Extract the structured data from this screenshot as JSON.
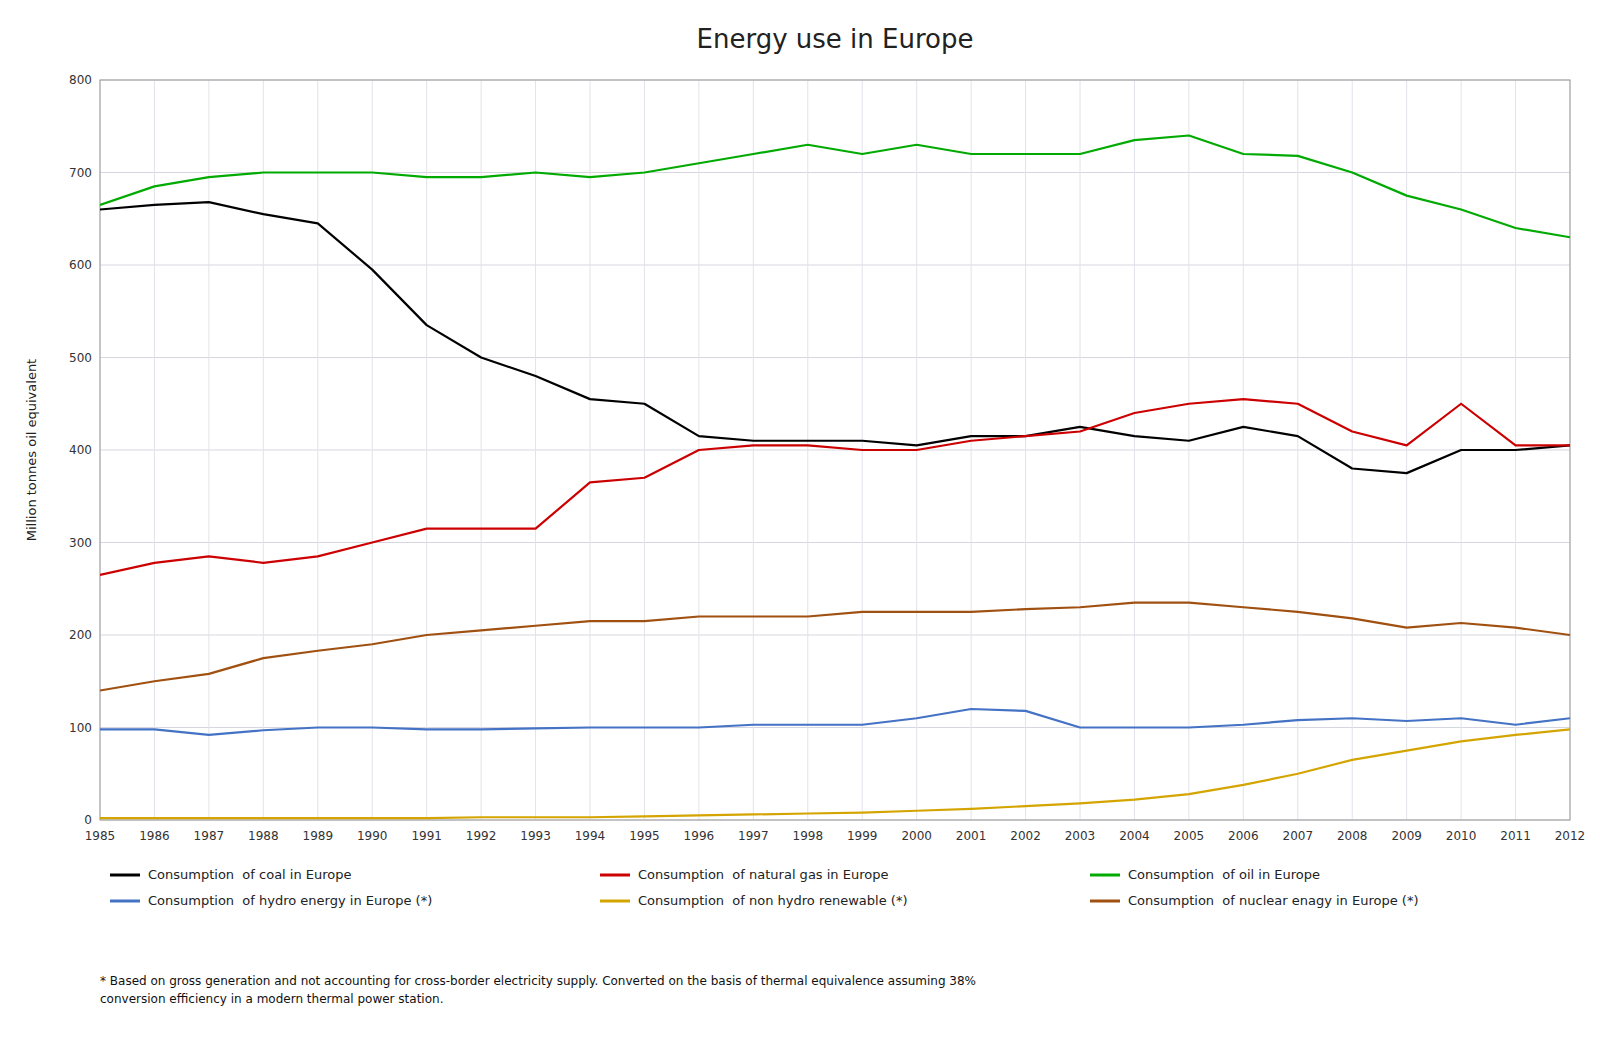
{
  "chart_data": {
    "type": "line",
    "title": "Energy use in Europe",
    "y_label": "Million tonnes oil equivalent",
    "annotations": [
      "* Based on gross generation and not accounting for cross-border electricity supply. Converted on the basis of thermal equivalence assuming 38%\nconversion efficiency in a modern thermal power station."
    ],
    "x": [
      1985,
      1986,
      1987,
      1988,
      1989,
      1990,
      1991,
      1992,
      1993,
      1994,
      1995,
      1996,
      1997,
      1998,
      1999,
      2000,
      2001,
      2002,
      2003,
      2004,
      2005,
      2006,
      2007,
      2008,
      2009,
      2010,
      2011,
      2012
    ],
    "series": [
      {
        "name": "Consumption  of coal in Europe",
        "color": "#000000",
        "values": [
          660,
          665,
          668,
          655,
          645,
          595,
          535,
          500,
          480,
          455,
          450,
          415,
          410,
          410,
          410,
          405,
          415,
          415,
          425,
          415,
          410,
          425,
          415,
          380,
          375,
          400,
          400,
          405
        ]
      },
      {
        "name": "Consumption  of natural gas in Europe",
        "color": "#cc0000",
        "values": [
          265,
          278,
          285,
          278,
          285,
          300,
          315,
          315,
          315,
          365,
          370,
          400,
          405,
          405,
          400,
          400,
          410,
          415,
          420,
          440,
          450,
          455,
          450,
          420,
          405,
          450,
          405,
          405
        ]
      },
      {
        "name": "Consumption  of oil in Europe",
        "color": "#00aa00",
        "values": [
          665,
          685,
          695,
          700,
          700,
          700,
          695,
          695,
          700,
          695,
          700,
          710,
          720,
          730,
          720,
          730,
          720,
          720,
          720,
          735,
          740,
          720,
          718,
          700,
          675,
          660,
          640,
          630
        ]
      },
      {
        "name": "Consumption  of hydro energy in Europe (*)",
        "color": "#4472c4",
        "values": [
          98,
          98,
          92,
          97,
          100,
          100,
          98,
          98,
          99,
          100,
          100,
          100,
          103,
          103,
          103,
          110,
          120,
          118,
          100,
          100,
          100,
          103,
          108,
          110,
          107,
          110,
          103,
          110
        ]
      },
      {
        "name": "Consumption  of non hydro renewable (*)",
        "color": "#d4a500",
        "values": [
          2,
          2,
          2,
          2,
          2,
          2,
          2,
          3,
          3,
          3,
          4,
          5,
          6,
          7,
          8,
          10,
          12,
          15,
          18,
          22,
          28,
          38,
          50,
          65,
          75,
          85,
          92,
          98
        ]
      },
      {
        "name": "Consumption  of nuclear enagy in Europe (*)",
        "color": "#a05010",
        "values": [
          140,
          150,
          158,
          175,
          183,
          190,
          200,
          205,
          210,
          215,
          215,
          220,
          220,
          220,
          225,
          225,
          225,
          228,
          230,
          235,
          235,
          230,
          225,
          218,
          208,
          213,
          208,
          200
        ]
      }
    ],
    "xlim": [
      1985,
      2012
    ],
    "xticks": [
      1985,
      1986,
      1987,
      1988,
      1989,
      1990,
      1991,
      1992,
      1993,
      1994,
      1995,
      1996,
      1997,
      1998,
      1999,
      2000,
      2001,
      2002,
      2003,
      2004,
      2005,
      2006,
      2007,
      2008,
      2009,
      2010,
      2011,
      2012
    ],
    "ylim": [
      0,
      800
    ],
    "yticks": [
      0,
      100,
      200,
      300,
      400,
      500,
      600,
      700,
      800
    ],
    "grid": true,
    "legend": "bottom"
  }
}
